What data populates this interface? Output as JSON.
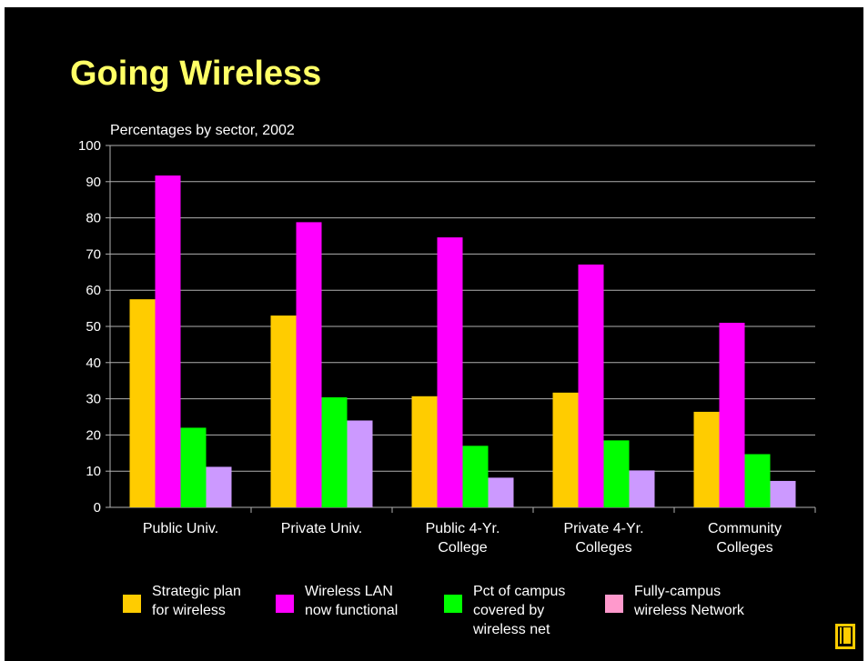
{
  "slide": {
    "title": "Going Wireless",
    "background": "#000000",
    "title_color": "#ffff66"
  },
  "chart_data": {
    "type": "bar",
    "title": "Going Wireless",
    "subtitle": "Percentages by sector, 2002",
    "xlabel": "",
    "ylabel": "",
    "ylim": [
      0,
      100
    ],
    "yticks": [
      0,
      10,
      20,
      30,
      40,
      50,
      60,
      70,
      80,
      90,
      100
    ],
    "grid": true,
    "legend_position": "bottom",
    "categories": [
      "Public Univ.",
      "Private Univ.",
      "Public 4-Yr.\nCollege",
      "Private 4-Yr.\nColleges",
      "Community\nColleges"
    ],
    "series": [
      {
        "name": "Strategic plan\nfor wireless",
        "color": "#ffcc00",
        "values": [
          57.5,
          53,
          30.7,
          31.7,
          26.4
        ]
      },
      {
        "name": "Wireless LAN\nnow functional",
        "color": "#ff00ff",
        "values": [
          91.7,
          78.8,
          74.6,
          67.1,
          51
        ]
      },
      {
        "name": "Pct of campus\ncovered by\nwireless net",
        "color": "#00ff00",
        "values": [
          22,
          30.4,
          17,
          18.5,
          14.7
        ]
      },
      {
        "name": "Fully-campus\nwireless Network",
        "color": "#cc99ff",
        "values": [
          11.2,
          24,
          8.2,
          10.2,
          7.3
        ]
      }
    ],
    "legend_swatch_colors": [
      "#ffcc00",
      "#ff00ff",
      "#00ff00",
      "#ff99cc"
    ]
  },
  "icons": {
    "corner_logo": "book-logo-icon"
  }
}
